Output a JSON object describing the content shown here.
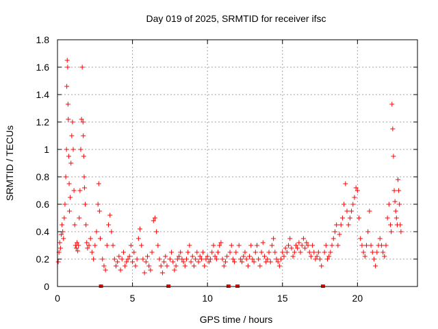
{
  "chart_data": {
    "type": "scatter",
    "title": "Day 019 of 2025, SRMTID for receiver ifsc",
    "xlabel": "GPS time / hours",
    "ylabel": "SRMTID / TECUs",
    "xlim": [
      0,
      24
    ],
    "ylim": [
      0,
      1.8
    ],
    "xticks": [
      0,
      5,
      10,
      15,
      20
    ],
    "xtick_labels": [
      "0",
      "5",
      "10",
      "15",
      "20"
    ],
    "yticks": [
      0,
      0.2,
      0.4,
      0.6,
      0.8,
      1.0,
      1.2,
      1.4,
      1.6,
      1.8
    ],
    "ytick_labels": [
      "0",
      "0.2",
      "0.4",
      "0.6",
      "0.8",
      "1",
      "1.2",
      "1.4",
      "1.6",
      "1.8"
    ],
    "grid": true,
    "marker": "+",
    "color": "#ff0000",
    "data_gaps_x": [
      2.9,
      7.4,
      11.4,
      12.0,
      17.7
    ],
    "series": [
      {
        "name": "SRMTID",
        "x": [
          0.05,
          0.1,
          0.15,
          0.2,
          0.25,
          0.3,
          0.35,
          0.4,
          0.45,
          0.5,
          0.55,
          0.6,
          0.62,
          0.65,
          0.68,
          0.7,
          0.72,
          0.75,
          0.78,
          0.8,
          0.85,
          0.9,
          0.95,
          1.0,
          1.05,
          1.1,
          1.15,
          1.2,
          1.25,
          1.3,
          1.35,
          1.4,
          1.45,
          1.5,
          1.55,
          1.6,
          1.65,
          1.7,
          1.72,
          1.75,
          1.78,
          1.8,
          1.85,
          1.9,
          1.95,
          2.0,
          2.1,
          2.2,
          2.3,
          2.4,
          2.5,
          2.6,
          2.7,
          2.75,
          2.8,
          2.85,
          3.0,
          3.1,
          3.2,
          3.3,
          3.4,
          3.5,
          3.6,
          3.7,
          3.8,
          3.9,
          4.0,
          4.1,
          4.2,
          4.3,
          4.4,
          4.5,
          4.6,
          4.7,
          4.8,
          4.9,
          5.0,
          5.1,
          5.2,
          5.3,
          5.4,
          5.5,
          5.6,
          5.7,
          5.8,
          5.9,
          6.0,
          6.1,
          6.2,
          6.3,
          6.4,
          6.5,
          6.6,
          6.7,
          6.8,
          6.9,
          7.0,
          7.1,
          7.2,
          7.3,
          7.5,
          7.6,
          7.7,
          7.8,
          7.9,
          8.0,
          8.1,
          8.2,
          8.3,
          8.4,
          8.5,
          8.6,
          8.7,
          8.8,
          8.9,
          9.0,
          9.1,
          9.2,
          9.3,
          9.4,
          9.5,
          9.6,
          9.7,
          9.8,
          9.9,
          10.0,
          10.1,
          10.2,
          10.3,
          10.4,
          10.5,
          10.6,
          10.7,
          10.8,
          10.9,
          11.0,
          11.1,
          11.2,
          11.3,
          11.5,
          11.6,
          11.7,
          11.8,
          11.9,
          12.1,
          12.2,
          12.3,
          12.4,
          12.5,
          12.6,
          12.7,
          12.8,
          12.9,
          13.0,
          13.1,
          13.2,
          13.3,
          13.4,
          13.5,
          13.6,
          13.7,
          13.8,
          13.9,
          14.0,
          14.1,
          14.2,
          14.3,
          14.4,
          14.5,
          14.6,
          14.7,
          14.8,
          14.9,
          15.0,
          15.1,
          15.2,
          15.3,
          15.4,
          15.5,
          15.6,
          15.7,
          15.8,
          15.9,
          16.0,
          16.1,
          16.2,
          16.3,
          16.4,
          16.5,
          16.6,
          16.7,
          16.8,
          16.9,
          17.0,
          17.1,
          17.2,
          17.3,
          17.4,
          17.5,
          17.6,
          17.8,
          17.9,
          18.0,
          18.1,
          18.2,
          18.3,
          18.4,
          18.5,
          18.6,
          18.7,
          18.8,
          18.9,
          19.0,
          19.1,
          19.2,
          19.3,
          19.4,
          19.5,
          19.6,
          19.7,
          19.8,
          19.9,
          20.0,
          20.1,
          20.2,
          20.3,
          20.4,
          20.5,
          20.6,
          20.7,
          20.8,
          20.9,
          21.0,
          21.1,
          21.2,
          21.3,
          21.4,
          21.5,
          21.6,
          21.7,
          21.8,
          21.9,
          22.0,
          22.1,
          22.2,
          22.25,
          22.3,
          22.35,
          22.4,
          22.45,
          22.5,
          22.55,
          22.6,
          22.65,
          22.7,
          22.75,
          22.8,
          22.85,
          22.9
        ],
        "y": [
          0.18,
          0.25,
          0.32,
          0.28,
          0.38,
          0.45,
          0.4,
          0.35,
          0.5,
          0.6,
          0.8,
          1.0,
          1.46,
          1.65,
          1.6,
          1.33,
          1.22,
          0.95,
          0.75,
          0.55,
          0.65,
          0.9,
          1.1,
          1.2,
          1.0,
          0.7,
          0.45,
          0.3,
          0.28,
          0.32,
          0.26,
          0.3,
          0.5,
          0.7,
          1.0,
          1.22,
          1.6,
          1.2,
          1.1,
          0.95,
          0.8,
          0.72,
          0.6,
          0.45,
          0.32,
          0.28,
          0.3,
          0.35,
          0.25,
          0.2,
          0.3,
          0.4,
          0.6,
          0.75,
          0.55,
          0.35,
          0.2,
          0.15,
          0.12,
          0.3,
          0.45,
          0.52,
          0.4,
          0.3,
          0.2,
          0.15,
          0.18,
          0.22,
          0.12,
          0.2,
          0.25,
          0.15,
          0.18,
          0.2,
          0.22,
          0.3,
          0.18,
          0.25,
          0.15,
          0.2,
          0.35,
          0.42,
          0.3,
          0.2,
          0.1,
          0.18,
          0.22,
          0.15,
          0.12,
          0.25,
          0.48,
          0.5,
          0.4,
          0.3,
          0.2,
          0.15,
          0.1,
          0.18,
          0.22,
          0.15,
          0.2,
          0.25,
          0.18,
          0.12,
          0.15,
          0.2,
          0.22,
          0.25,
          0.2,
          0.18,
          0.15,
          0.2,
          0.25,
          0.3,
          0.18,
          0.22,
          0.15,
          0.2,
          0.25,
          0.18,
          0.22,
          0.2,
          0.25,
          0.15,
          0.2,
          0.22,
          0.18,
          0.2,
          0.25,
          0.3,
          0.22,
          0.2,
          0.25,
          0.3,
          0.32,
          0.2,
          0.15,
          0.18,
          0.22,
          0.25,
          0.3,
          0.2,
          0.18,
          0.25,
          0.3,
          0.2,
          0.18,
          0.22,
          0.25,
          0.2,
          0.15,
          0.22,
          0.3,
          0.2,
          0.18,
          0.25,
          0.3,
          0.2,
          0.15,
          0.25,
          0.32,
          0.22,
          0.18,
          0.2,
          0.25,
          0.18,
          0.3,
          0.35,
          0.25,
          0.2,
          0.18,
          0.15,
          0.2,
          0.25,
          0.22,
          0.28,
          0.25,
          0.3,
          0.35,
          0.28,
          0.22,
          0.25,
          0.3,
          0.28,
          0.32,
          0.25,
          0.3,
          0.35,
          0.28,
          0.32,
          0.3,
          0.25,
          0.22,
          0.3,
          0.25,
          0.2,
          0.22,
          0.25,
          0.2,
          0.15,
          0.25,
          0.3,
          0.2,
          0.22,
          0.25,
          0.3,
          0.35,
          0.4,
          0.45,
          0.3,
          0.38,
          0.45,
          0.5,
          0.6,
          0.75,
          0.55,
          0.45,
          0.5,
          0.55,
          0.6,
          0.65,
          0.72,
          0.7,
          0.5,
          0.35,
          0.3,
          0.25,
          0.22,
          0.3,
          0.4,
          0.55,
          0.3,
          0.25,
          0.2,
          0.15,
          0.25,
          0.3,
          0.35,
          0.3,
          0.25,
          0.22,
          0.3,
          0.5,
          0.6,
          0.45,
          0.4,
          1.33,
          1.15,
          0.95,
          0.7,
          0.62,
          0.55,
          0.5,
          0.45,
          0.78,
          0.7,
          0.6,
          0.45,
          0.4
        ]
      }
    ]
  }
}
